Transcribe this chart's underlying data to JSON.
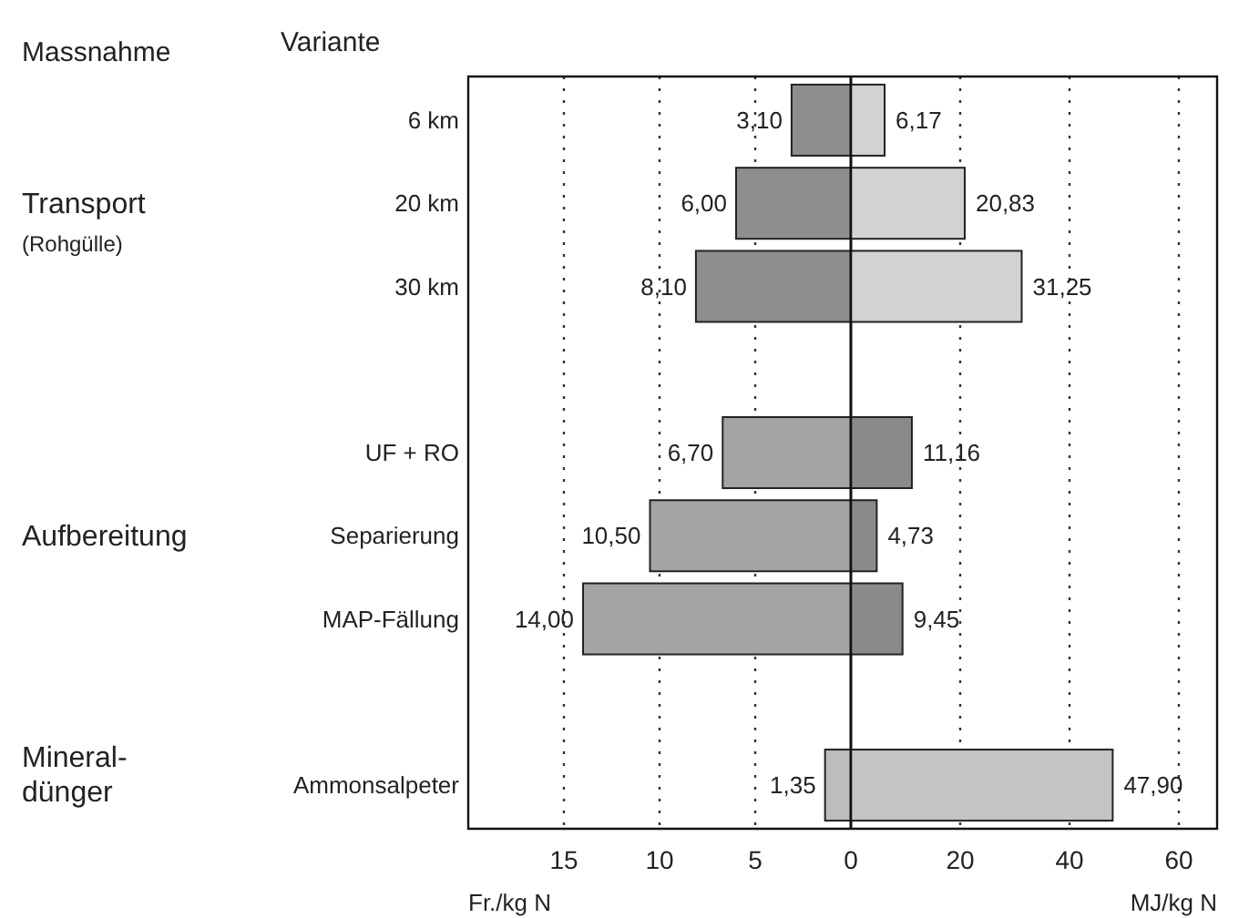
{
  "chart_data": [
    {
      "type": "bar",
      "orientation": "horizontal",
      "ylabel": "Variante",
      "categories": [
        "6 km",
        "20 km",
        "30 km",
        null,
        "UF + RO",
        "Separierung",
        "MAP-Fällung",
        null,
        "Ammonsalpeter"
      ],
      "values": [
        3.1,
        6.0,
        8.1,
        null,
        6.7,
        10.5,
        14.0,
        null,
        1.35
      ],
      "colors": [
        "#8e8e8e",
        "#8e8e8e",
        "#8e8e8e",
        null,
        "#a4a4a4",
        "#a4a4a4",
        "#a4a4a4",
        null,
        "#bdbdbd"
      ],
      "value_labels": [
        "3,10",
        "6,00",
        "8,10",
        null,
        "6,70",
        "10,50",
        "14,00",
        null,
        "1,35"
      ],
      "xlim": [
        20,
        0
      ],
      "xticks": [
        15,
        10,
        5,
        0
      ],
      "xlabel": "Fr./kg N",
      "grid": "x",
      "annotations": [
        "Massnahme",
        "Transport",
        "(Rohgülle)",
        "Aufbereitung",
        "Mineral-dünger"
      ]
    },
    {
      "type": "bar",
      "orientation": "horizontal",
      "categories": [
        null,
        null,
        null,
        null,
        null,
        null,
        null,
        null,
        null
      ],
      "values": [
        6.17,
        20.83,
        31.25,
        null,
        11.16,
        4.73,
        9.45,
        null,
        47.9
      ],
      "colors": [
        "#d2d2d2",
        "#d2d2d2",
        "#d2d2d2",
        null,
        "#8a8a8a",
        "#8a8a8a",
        "#8a8a8a",
        null,
        "#c4c4c4"
      ],
      "value_labels": [
        "6,17",
        "20,83",
        "31,25",
        null,
        "11,16",
        "4,73",
        "9,45",
        null,
        "47,90"
      ],
      "xlim": [
        0,
        67
      ],
      "xticks": [
        20,
        40,
        60
      ],
      "xlabel": "MJ/kg N",
      "grid": "x",
      "tick_labels": "x"
    }
  ]
}
